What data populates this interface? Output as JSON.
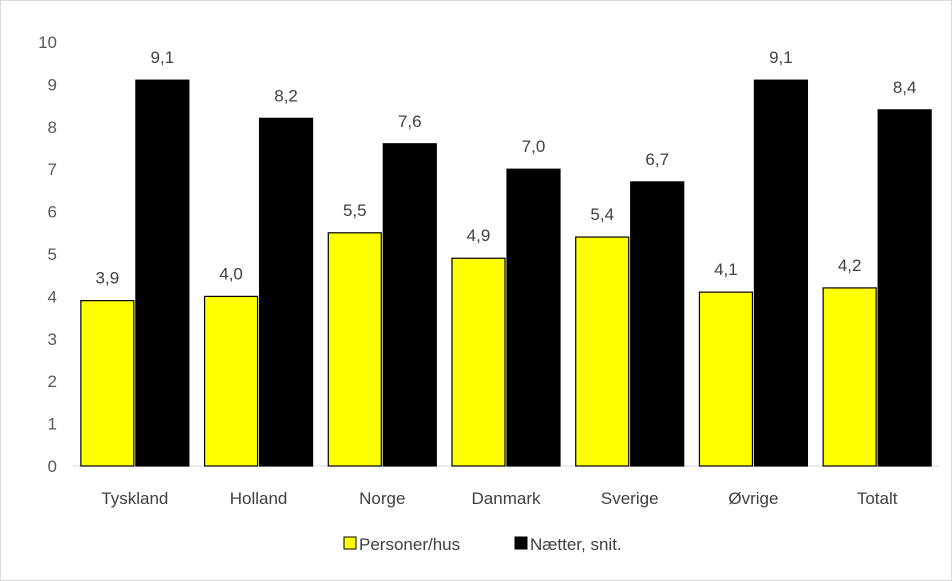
{
  "chart_data": {
    "type": "bar",
    "title": "",
    "xlabel": "",
    "ylabel": "",
    "ylim": [
      0,
      10
    ],
    "yticks": [
      0,
      1,
      2,
      3,
      4,
      5,
      6,
      7,
      8,
      9,
      10
    ],
    "grid": false,
    "legend_position": "bottom",
    "categories": [
      "Tyskland",
      "Holland",
      "Norge",
      "Danmark",
      "Sverige",
      "Øvrige",
      "Totalt"
    ],
    "series": [
      {
        "name": "Personer/hus",
        "color": "#ffff00",
        "values": [
          3.9,
          4.0,
          5.5,
          4.9,
          5.4,
          4.1,
          4.2
        ],
        "labels": [
          "3,9",
          "4,0",
          "5,5",
          "4,9",
          "5,4",
          "4,1",
          "4,2"
        ]
      },
      {
        "name": "Nætter, snit.",
        "color": "#000000",
        "values": [
          9.1,
          8.2,
          7.6,
          7.0,
          6.7,
          9.1,
          8.4
        ],
        "labels": [
          "9,1",
          "8,2",
          "7,6",
          "7,0",
          "6,7",
          "9,1",
          "8,4"
        ]
      }
    ]
  }
}
